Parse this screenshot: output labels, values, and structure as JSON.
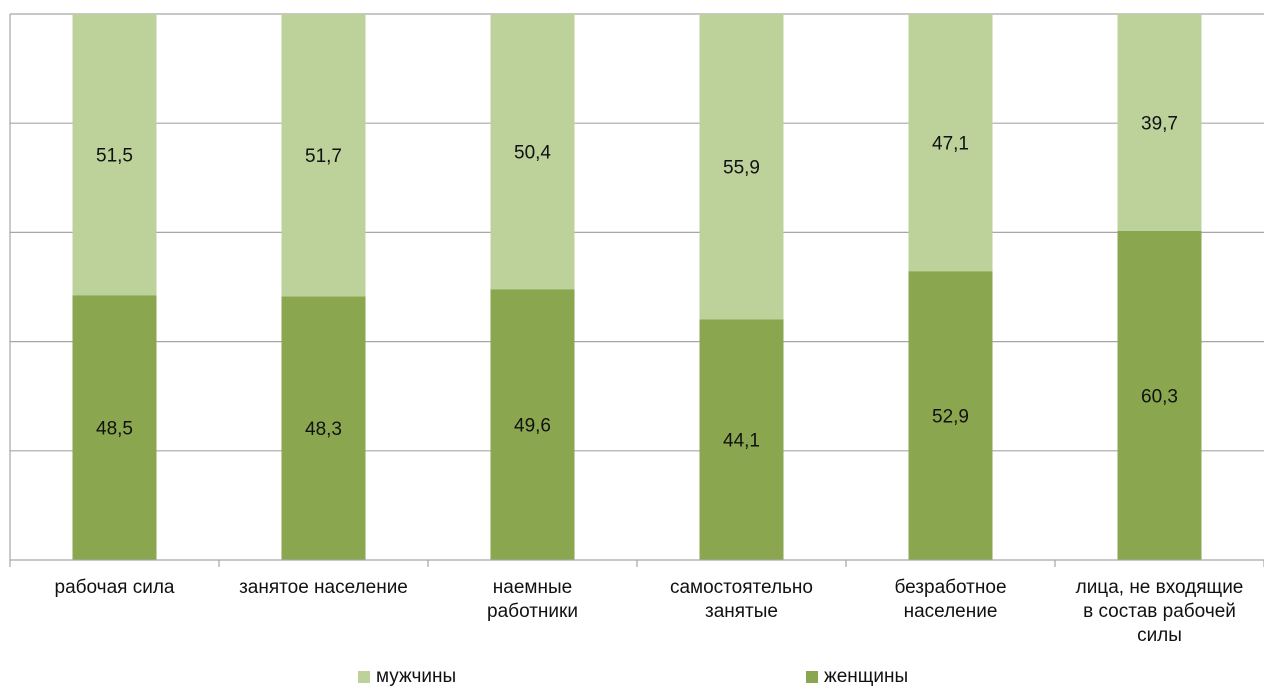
{
  "chart_data": {
    "type": "bar",
    "stacked": true,
    "percent_stacked": true,
    "categories": [
      "рабочая сила",
      "занятое население",
      "наемные\nработники",
      "самостоятельно\nзанятые",
      "безработное\nнаселение",
      "лица, не входящие\nв состав рабочей\nсилы"
    ],
    "series": [
      {
        "name": "женщины",
        "color": "#8aa74f",
        "values": [
          48.5,
          48.3,
          49.6,
          44.1,
          52.9,
          60.3
        ]
      },
      {
        "name": "мужчины",
        "color": "#bcd29a",
        "values": [
          51.5,
          51.7,
          50.4,
          55.9,
          47.1,
          39.7
        ]
      }
    ],
    "value_labels": {
      "женщины": [
        "48,5",
        "48,3",
        "49,6",
        "44,1",
        "52,9",
        "60,3"
      ],
      "мужчины": [
        "51,5",
        "51,7",
        "50,4",
        "55,9",
        "47,1",
        "39,7"
      ]
    },
    "ylim": [
      0,
      100
    ],
    "grid": true,
    "legend_position": "bottom"
  },
  "legend": {
    "male_label": "мужчины",
    "female_label": "женщины"
  }
}
